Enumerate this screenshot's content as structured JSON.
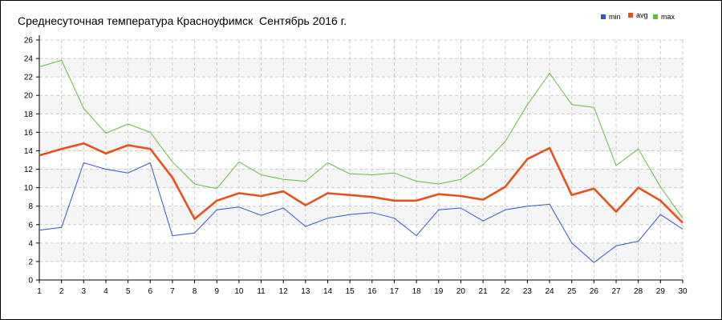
{
  "chart_data": {
    "type": "line",
    "title": "Среднесуточная температура Красноуфимск  Сентябрь 2016 г.",
    "xlabel": "",
    "ylabel": "",
    "x": [
      1,
      2,
      3,
      4,
      5,
      6,
      7,
      8,
      9,
      10,
      11,
      12,
      13,
      14,
      15,
      16,
      17,
      18,
      19,
      20,
      21,
      22,
      23,
      24,
      25,
      26,
      27,
      28,
      29,
      30
    ],
    "xlim": [
      1,
      30
    ],
    "ylim": [
      0,
      26
    ],
    "yticks": [
      0,
      2,
      4,
      6,
      8,
      10,
      12,
      14,
      16,
      18,
      20,
      22,
      24,
      26
    ],
    "grid": true,
    "legend_position": "top-right",
    "series": [
      {
        "name": "min",
        "color": "#3355cc",
        "values": [
          5.4,
          5.7,
          12.7,
          12.0,
          11.6,
          12.7,
          4.8,
          5.1,
          7.6,
          7.9,
          7.0,
          7.8,
          5.8,
          6.7,
          7.1,
          7.3,
          6.7,
          4.8,
          7.6,
          7.8,
          6.4,
          7.6,
          8.0,
          8.2,
          4.0,
          1.9,
          3.7,
          4.2,
          7.1,
          5.5
        ]
      },
      {
        "name": "avg",
        "color": "#e8501e",
        "values": [
          13.5,
          14.2,
          14.8,
          13.7,
          14.6,
          14.2,
          11.1,
          6.6,
          8.6,
          9.4,
          9.1,
          9.6,
          8.1,
          9.4,
          9.2,
          9.0,
          8.6,
          8.6,
          9.3,
          9.1,
          8.7,
          10.1,
          13.1,
          14.3,
          9.2,
          9.9,
          7.4,
          10.0,
          8.6,
          6.2
        ]
      },
      {
        "name": "max",
        "color": "#66bb44",
        "values": [
          23.1,
          23.8,
          18.6,
          15.9,
          16.9,
          16.0,
          12.8,
          10.4,
          9.9,
          12.8,
          11.4,
          10.9,
          10.7,
          12.7,
          11.5,
          11.4,
          11.6,
          10.7,
          10.4,
          10.9,
          12.5,
          15.0,
          19.0,
          22.4,
          19.0,
          18.7,
          12.4,
          14.2,
          10.1,
          6.7
        ]
      }
    ]
  }
}
